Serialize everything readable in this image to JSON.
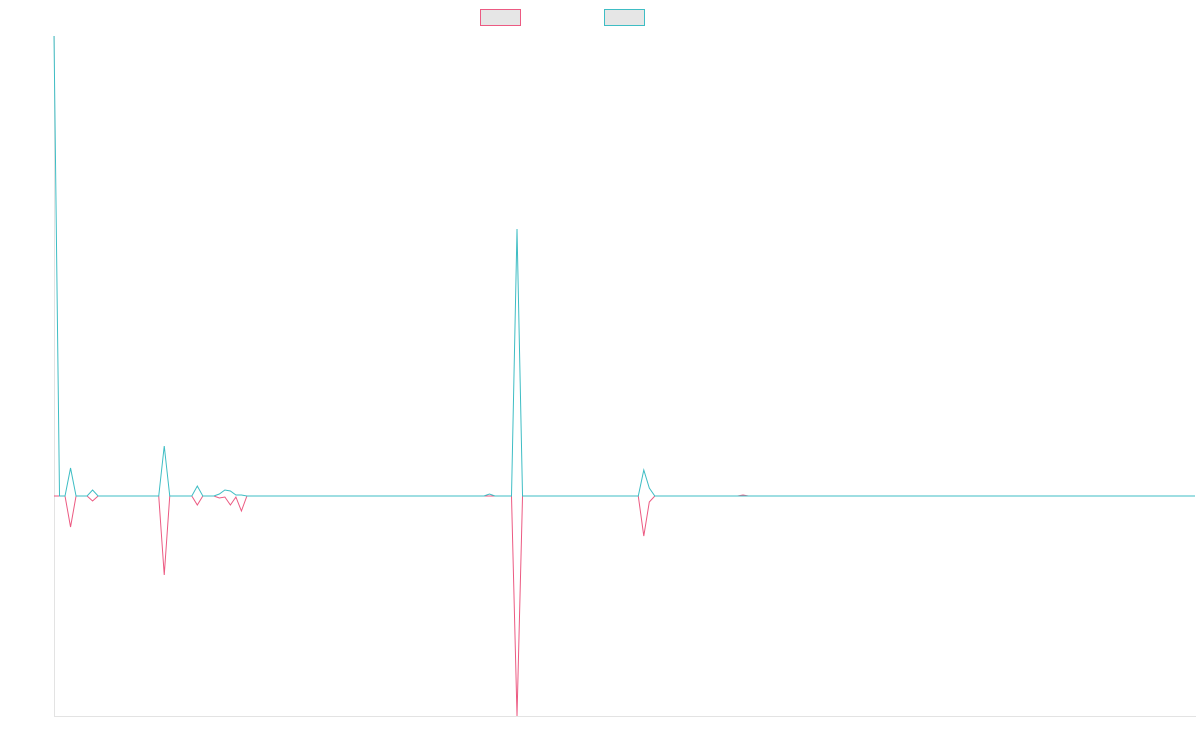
{
  "chart_data": {
    "type": "line",
    "categories": [
      null,
      null,
      null,
      null,
      null,
      null,
      null,
      null,
      null,
      null,
      null,
      null,
      null,
      null,
      null,
      null,
      null,
      null,
      null,
      null,
      null,
      null,
      null,
      null,
      null,
      null,
      null,
      null,
      null,
      null,
      null,
      null,
      null,
      null,
      null,
      null,
      null,
      null,
      null,
      null,
      null,
      null,
      null,
      null,
      null,
      null,
      null,
      null,
      null,
      null,
      null,
      null,
      null,
      null,
      null,
      null,
      null,
      null,
      null,
      null,
      null,
      null,
      null,
      null,
      null,
      null,
      null,
      null,
      null,
      null,
      null,
      null,
      null,
      null,
      null,
      null,
      null,
      null,
      null,
      null,
      null,
      null,
      null,
      null,
      null,
      null,
      null,
      null,
      null,
      null,
      null,
      null,
      null,
      null,
      null,
      null,
      null,
      null,
      null,
      null,
      null,
      null,
      null,
      null,
      null,
      null,
      null,
      null,
      null,
      null,
      null,
      null,
      null,
      null,
      null,
      null,
      null,
      null,
      null,
      null,
      null,
      null,
      null,
      null,
      null,
      null,
      null,
      null,
      null,
      null,
      null,
      null,
      null,
      null,
      null,
      null,
      null,
      null,
      null,
      null,
      null,
      null,
      null,
      null,
      null,
      null,
      null,
      null,
      null,
      null,
      null,
      null,
      null,
      null,
      null,
      null,
      null,
      null,
      null,
      null,
      null,
      null,
      null,
      null,
      null,
      null,
      null,
      null,
      null,
      null,
      null,
      null,
      null,
      null,
      null,
      null,
      null,
      null,
      null,
      null,
      null,
      null,
      null,
      null,
      null,
      null,
      null,
      null,
      null,
      null,
      null,
      null,
      null,
      null,
      null,
      null,
      null,
      null,
      null,
      null,
      null,
      null,
      null,
      null,
      null,
      null,
      null,
      null
    ],
    "series": [
      {
        "color": "#ec5a82",
        "values": [
          0,
          0,
          0,
          -31,
          0,
          0,
          0,
          -5,
          0,
          0,
          0,
          0,
          0,
          0,
          0,
          0,
          0,
          0,
          0,
          0,
          -79,
          0,
          0,
          0,
          0,
          0,
          -9,
          0,
          0,
          0,
          -2,
          -1,
          -9,
          -1,
          -15,
          0,
          0,
          0,
          0,
          0,
          0,
          0,
          0,
          0,
          0,
          0,
          0,
          0,
          0,
          0,
          0,
          0,
          0,
          0,
          0,
          0,
          0,
          0,
          0,
          0,
          0,
          0,
          0,
          0,
          0,
          0,
          0,
          0,
          0,
          0,
          0,
          0,
          0,
          0,
          0,
          0,
          0,
          0,
          0,
          0,
          0,
          0,
          0,
          0,
          -220,
          0,
          0,
          0,
          0,
          0,
          0,
          0,
          0,
          0,
          0,
          0,
          0,
          0,
          0,
          0,
          0,
          0,
          0,
          0,
          0,
          0,
          0,
          -40,
          -6,
          0,
          0,
          0,
          0,
          0,
          0,
          0,
          0,
          0,
          0,
          0,
          0,
          0,
          0,
          0,
          0,
          1,
          0,
          0,
          0,
          0,
          0,
          0,
          0,
          0,
          0,
          0,
          0,
          0,
          0,
          0,
          0,
          0,
          0,
          0,
          0,
          0,
          0,
          0,
          0,
          0,
          0,
          0,
          0,
          0,
          0,
          0,
          0,
          0,
          0,
          0,
          0,
          0,
          0,
          0,
          0,
          0,
          0,
          0,
          0,
          0,
          0,
          0,
          0,
          0,
          0,
          0,
          0,
          0,
          0,
          0,
          0,
          0,
          0,
          0,
          0,
          0,
          0,
          0,
          0,
          0,
          0,
          0,
          0,
          0,
          0,
          0,
          0,
          0,
          0,
          0,
          0,
          0,
          0,
          0,
          0,
          0,
          0,
          0
        ]
      },
      {
        "color": "#3ebdc4",
        "values": [
          460,
          0,
          0,
          28,
          0,
          0,
          0,
          6,
          0,
          0,
          0,
          0,
          0,
          0,
          0,
          0,
          0,
          0,
          0,
          0,
          50,
          0,
          0,
          0,
          0,
          0,
          10,
          0,
          0,
          0,
          2,
          6,
          5,
          1,
          1,
          0,
          0,
          0,
          0,
          0,
          0,
          0,
          0,
          0,
          0,
          0,
          0,
          0,
          0,
          0,
          0,
          0,
          0,
          0,
          0,
          0,
          0,
          0,
          0,
          0,
          0,
          0,
          0,
          0,
          0,
          0,
          0,
          0,
          0,
          0,
          0,
          0,
          0,
          0,
          0,
          0,
          0,
          0,
          0,
          2,
          0,
          0,
          0,
          0,
          267,
          0,
          0,
          0,
          0,
          0,
          0,
          0,
          0,
          0,
          0,
          0,
          0,
          0,
          0,
          0,
          0,
          0,
          0,
          0,
          0,
          0,
          0,
          26,
          8,
          0,
          0,
          0,
          0,
          0,
          0,
          0,
          0,
          0,
          0,
          0,
          0,
          0,
          0,
          0,
          0,
          0,
          0,
          0,
          0,
          0,
          0,
          0,
          0,
          0,
          0,
          0,
          0,
          0,
          0,
          0,
          0,
          0,
          0,
          0,
          0,
          0,
          0,
          0,
          0,
          0,
          0,
          0,
          0,
          0,
          0,
          0,
          0,
          0,
          0,
          0,
          0,
          0,
          0,
          0,
          0,
          0,
          0,
          0,
          0,
          0,
          0,
          0,
          0,
          0,
          0,
          0,
          0,
          0,
          0,
          0,
          0,
          0,
          0,
          0,
          0,
          0,
          0,
          0,
          0,
          0,
          0,
          0,
          0,
          0,
          0,
          0,
          0,
          0,
          0,
          0,
          0,
          0,
          0,
          0,
          0,
          0,
          0,
          0
        ]
      }
    ],
    "ylim": [
      -220,
      460
    ]
  }
}
